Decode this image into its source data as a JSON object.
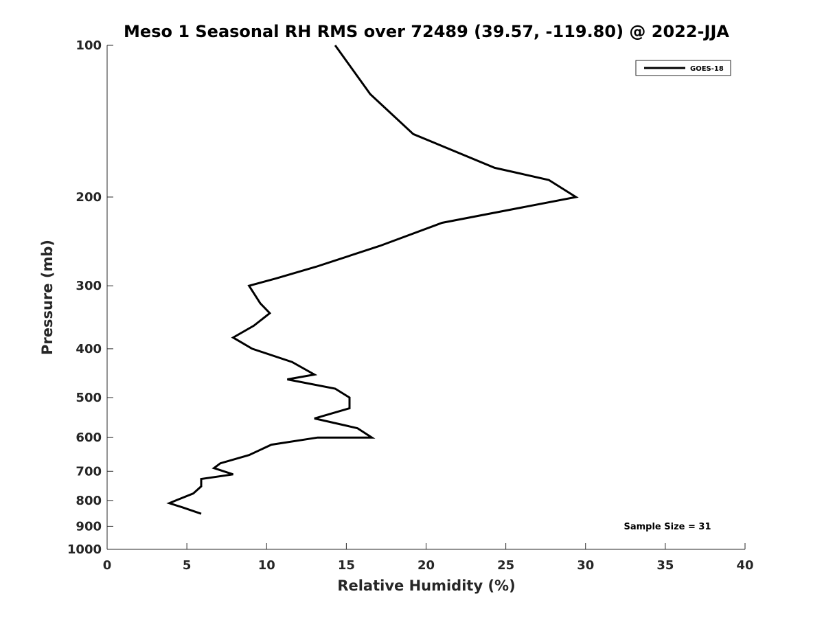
{
  "chart_data": {
    "type": "line",
    "title": "Meso 1 Seasonal RH RMS over 72489 (39.57, -119.80) @ 2022-JJA",
    "xlabel": "Relative Humidity (%)",
    "ylabel": "Pressure (mb)",
    "xlim": [
      0,
      40
    ],
    "ylim": [
      100,
      1000
    ],
    "yscale": "log",
    "y_reversed": true,
    "x_ticks": [
      0,
      5,
      10,
      15,
      20,
      25,
      30,
      35,
      40
    ],
    "y_ticks": [
      100,
      200,
      300,
      400,
      500,
      600,
      700,
      800,
      900,
      1000
    ],
    "grid": false,
    "legend_position": "top-right",
    "series": [
      {
        "name": "GOES-18",
        "color": "#000000",
        "x": [
          14.3,
          16.5,
          19.2,
          24.3,
          27.7,
          29.4,
          21.0,
          17.1,
          13.1,
          10.6,
          8.9,
          9.6,
          10.2,
          9.2,
          7.9,
          9.1,
          11.6,
          13.0,
          11.3,
          14.3,
          15.2,
          15.2,
          13.0,
          15.7,
          16.6,
          13.2,
          10.3,
          8.9,
          7.1,
          6.7,
          7.9,
          5.9,
          5.9,
          5.4,
          4.3,
          3.9,
          4.7,
          5.9
        ],
        "y": [
          100,
          125,
          150,
          175,
          185,
          200,
          225,
          250,
          275,
          290,
          300,
          325,
          340,
          360,
          380,
          400,
          425,
          450,
          460,
          480,
          500,
          525,
          550,
          575,
          600,
          600,
          620,
          650,
          675,
          690,
          710,
          725,
          750,
          775,
          800,
          810,
          825,
          850
        ]
      }
    ],
    "annotation": "Sample Size = 31"
  }
}
